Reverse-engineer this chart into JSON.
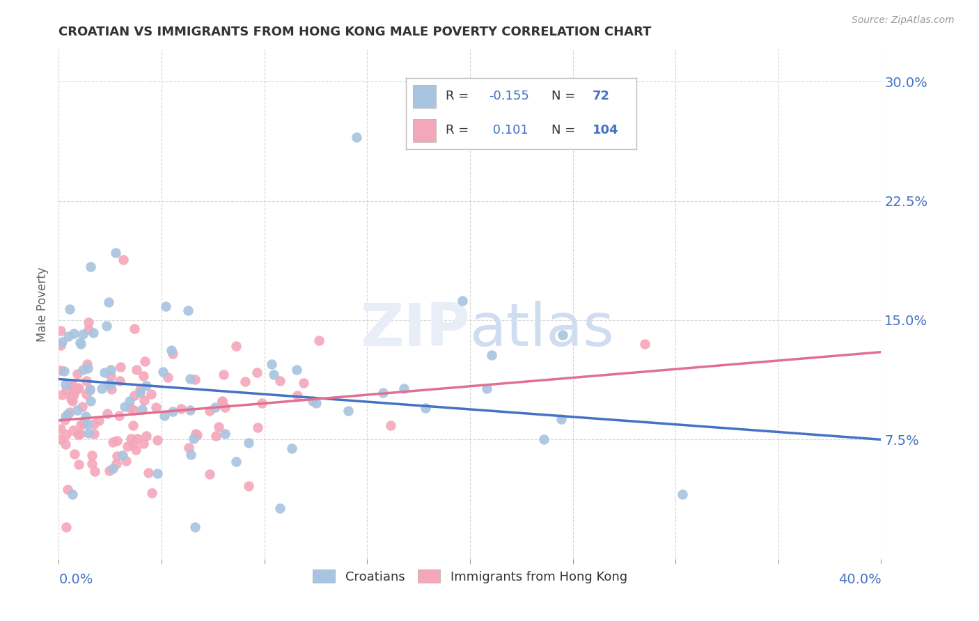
{
  "title": "CROATIAN VS IMMIGRANTS FROM HONG KONG MALE POVERTY CORRELATION CHART",
  "source": "Source: ZipAtlas.com",
  "ylabel": "Male Poverty",
  "yticks": [
    "7.5%",
    "15.0%",
    "22.5%",
    "30.0%"
  ],
  "ytick_vals": [
    0.075,
    0.15,
    0.225,
    0.3
  ],
  "xrange": [
    0.0,
    0.4
  ],
  "yrange": [
    0.0,
    0.32
  ],
  "croatian_color": "#a8c4e0",
  "hk_color": "#f4a7b9",
  "blue_line_color": "#4472c4",
  "pink_line_color": "#e07090",
  "tick_color": "#4472c4",
  "legend_R_croatian": "-0.155",
  "legend_N_croatian": "72",
  "legend_R_hk": "0.101",
  "legend_N_hk": "104"
}
